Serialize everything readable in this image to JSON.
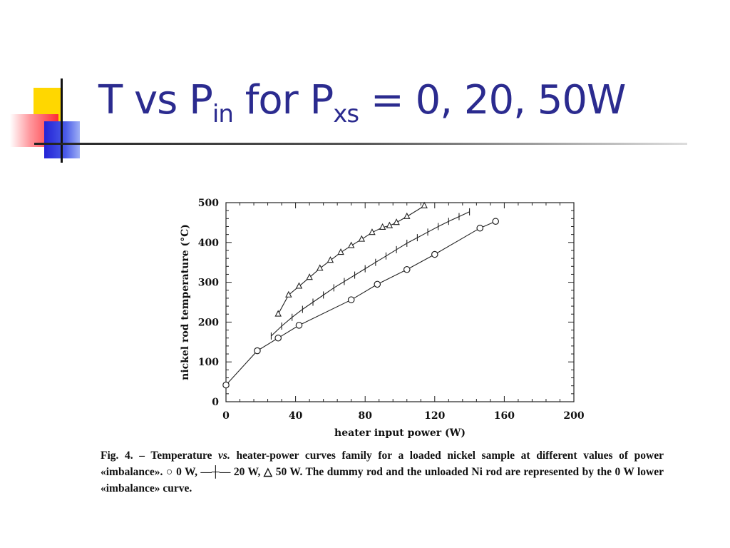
{
  "slide": {
    "title": {
      "t": "T vs P",
      "sub1": "in",
      "mid": " for P",
      "sub2": "xs",
      "rest": " = 0, 20, 50W"
    }
  },
  "chart_data": {
    "type": "line",
    "xlabel": "heater input power (W)",
    "ylabel": "nickel rod temperature (°C)",
    "xlim": [
      0,
      200
    ],
    "ylim": [
      0,
      500
    ],
    "xticks": [
      0,
      40,
      80,
      120,
      160,
      200
    ],
    "yticks": [
      0,
      100,
      200,
      300,
      400,
      500
    ],
    "grid": false,
    "series": [
      {
        "name": "0 W",
        "marker": "circle",
        "x": [
          0,
          18,
          30,
          42,
          72,
          87,
          104,
          120,
          146,
          155
        ],
        "y": [
          42,
          128,
          160,
          192,
          256,
          295,
          332,
          370,
          436,
          453
        ]
      },
      {
        "name": "20 W",
        "marker": "vbar",
        "x": [
          26,
          32,
          38,
          44,
          50,
          56,
          62,
          68,
          74,
          80,
          86,
          92,
          98,
          104,
          110,
          116,
          122,
          128,
          134,
          140
        ],
        "y": [
          165,
          190,
          212,
          232,
          250,
          268,
          286,
          302,
          318,
          334,
          350,
          366,
          382,
          398,
          412,
          426,
          440,
          453,
          465,
          477
        ]
      },
      {
        "name": "50 W",
        "marker": "triangle",
        "x": [
          30,
          36,
          42,
          48,
          54,
          60,
          66,
          72,
          78,
          84,
          90,
          94,
          98,
          104,
          114
        ],
        "y": [
          220,
          268,
          290,
          312,
          335,
          355,
          375,
          392,
          408,
          425,
          438,
          442,
          450,
          465,
          492
        ]
      }
    ]
  },
  "caption": {
    "prefix": "Fig. 4. – Temperature ",
    "vs": "vs.",
    "body": " heater-power curves family for a loaded nickel sample at different values of power «imbalance». ○ 0 W, —┼— 20 W, △ 50 W. The dummy rod and the unloaded Ni rod are represented by the 0 W lower «imbalance» curve."
  }
}
